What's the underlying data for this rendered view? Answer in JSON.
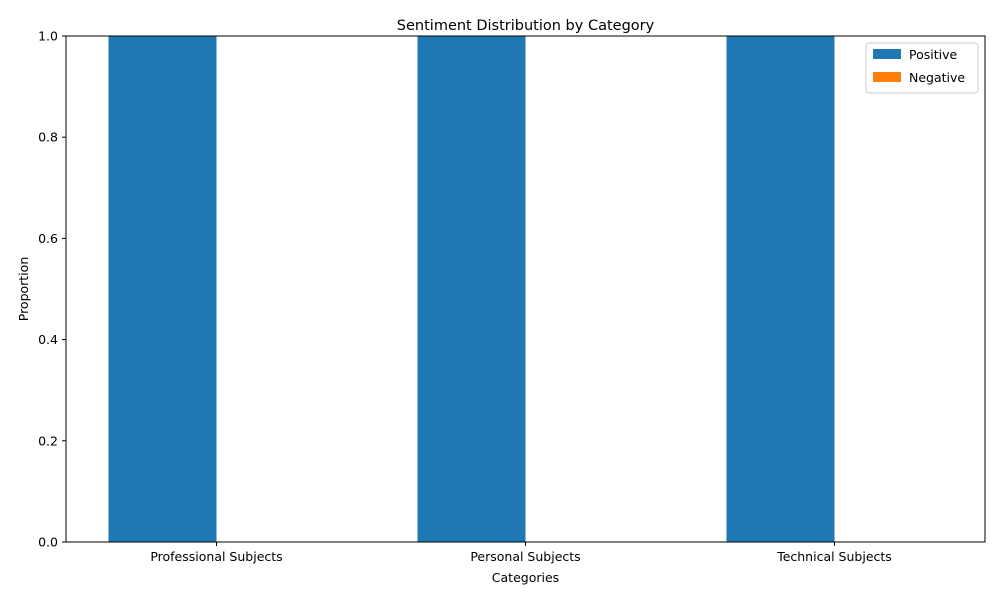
{
  "chart_data": {
    "type": "bar",
    "title": "Sentiment Distribution by Category",
    "xlabel": "Categories",
    "ylabel": "Proportion",
    "categories": [
      "Professional Subjects",
      "Personal Subjects",
      "Technical Subjects"
    ],
    "series": [
      {
        "name": "Positive",
        "color": "#1f77b4",
        "values": [
          1.0,
          1.0,
          1.0
        ]
      },
      {
        "name": "Negative",
        "color": "#ff7f0e",
        "values": [
          0.0,
          0.0,
          0.0
        ]
      }
    ],
    "ylim": [
      0,
      1.0
    ],
    "yticks": [
      "0.0",
      "0.2",
      "0.4",
      "0.6",
      "0.8",
      "1.0"
    ],
    "grid": false,
    "legend_position": "top-right"
  }
}
